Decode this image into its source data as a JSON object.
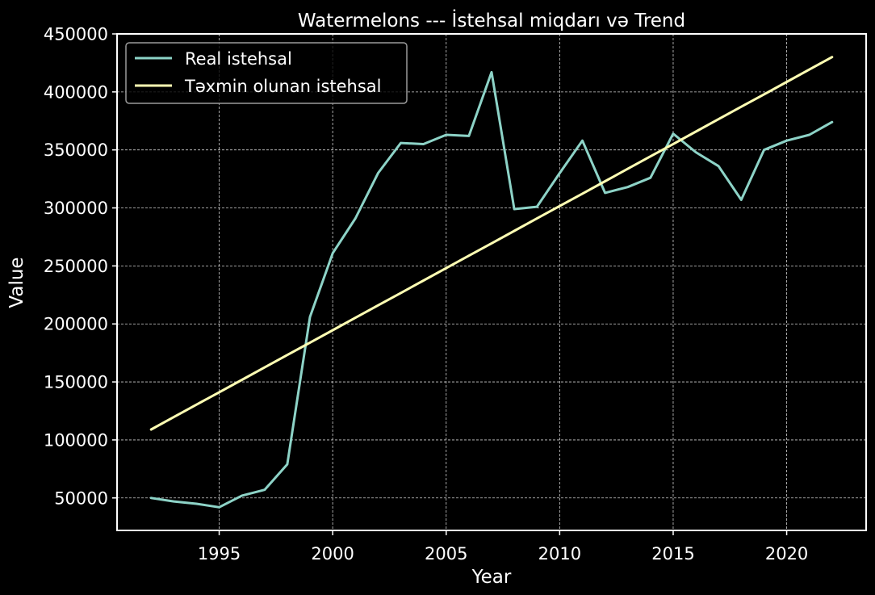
{
  "chart_data": {
    "type": "line",
    "title": "Watermelons --- İstehsal miqdarı və Trend",
    "xlabel": "Year",
    "ylabel": "Value",
    "xlim": [
      1990.5,
      2023.5
    ],
    "ylim": [
      22000,
      450000
    ],
    "xticks": [
      1995,
      2000,
      2005,
      2010,
      2015,
      2020
    ],
    "yticks": [
      50000,
      100000,
      150000,
      200000,
      250000,
      300000,
      350000,
      400000,
      450000
    ],
    "grid": true,
    "legend_position": "top-left",
    "x": [
      1992,
      1993,
      1994,
      1995,
      1996,
      1997,
      1998,
      1999,
      2000,
      2001,
      2002,
      2003,
      2004,
      2005,
      2006,
      2007,
      2008,
      2009,
      2010,
      2011,
      2012,
      2013,
      2014,
      2015,
      2016,
      2017,
      2018,
      2019,
      2020,
      2021,
      2022
    ],
    "series": [
      {
        "name": "Real istehsal",
        "color": "#8dd3c7",
        "values": [
          50000,
          47000,
          45000,
          42000,
          52000,
          57000,
          79000,
          206000,
          261000,
          291000,
          330000,
          356000,
          355000,
          363000,
          362000,
          417000,
          299000,
          301000,
          330000,
          358000,
          313000,
          318000,
          326000,
          364000,
          348000,
          336000,
          307000,
          350000,
          358000,
          363000,
          374000
        ]
      },
      {
        "name": "Təxmin olunan istehsal",
        "color": "#ffffb3",
        "values": [
          109000,
          119700,
          130400,
          141100,
          151800,
          162500,
          173200,
          183900,
          194600,
          205300,
          216000,
          226700,
          237400,
          248100,
          258800,
          269500,
          280200,
          290900,
          301600,
          312300,
          323000,
          333700,
          344400,
          355100,
          365800,
          376500,
          387200,
          397900,
          408600,
          419300,
          430000
        ]
      }
    ]
  }
}
